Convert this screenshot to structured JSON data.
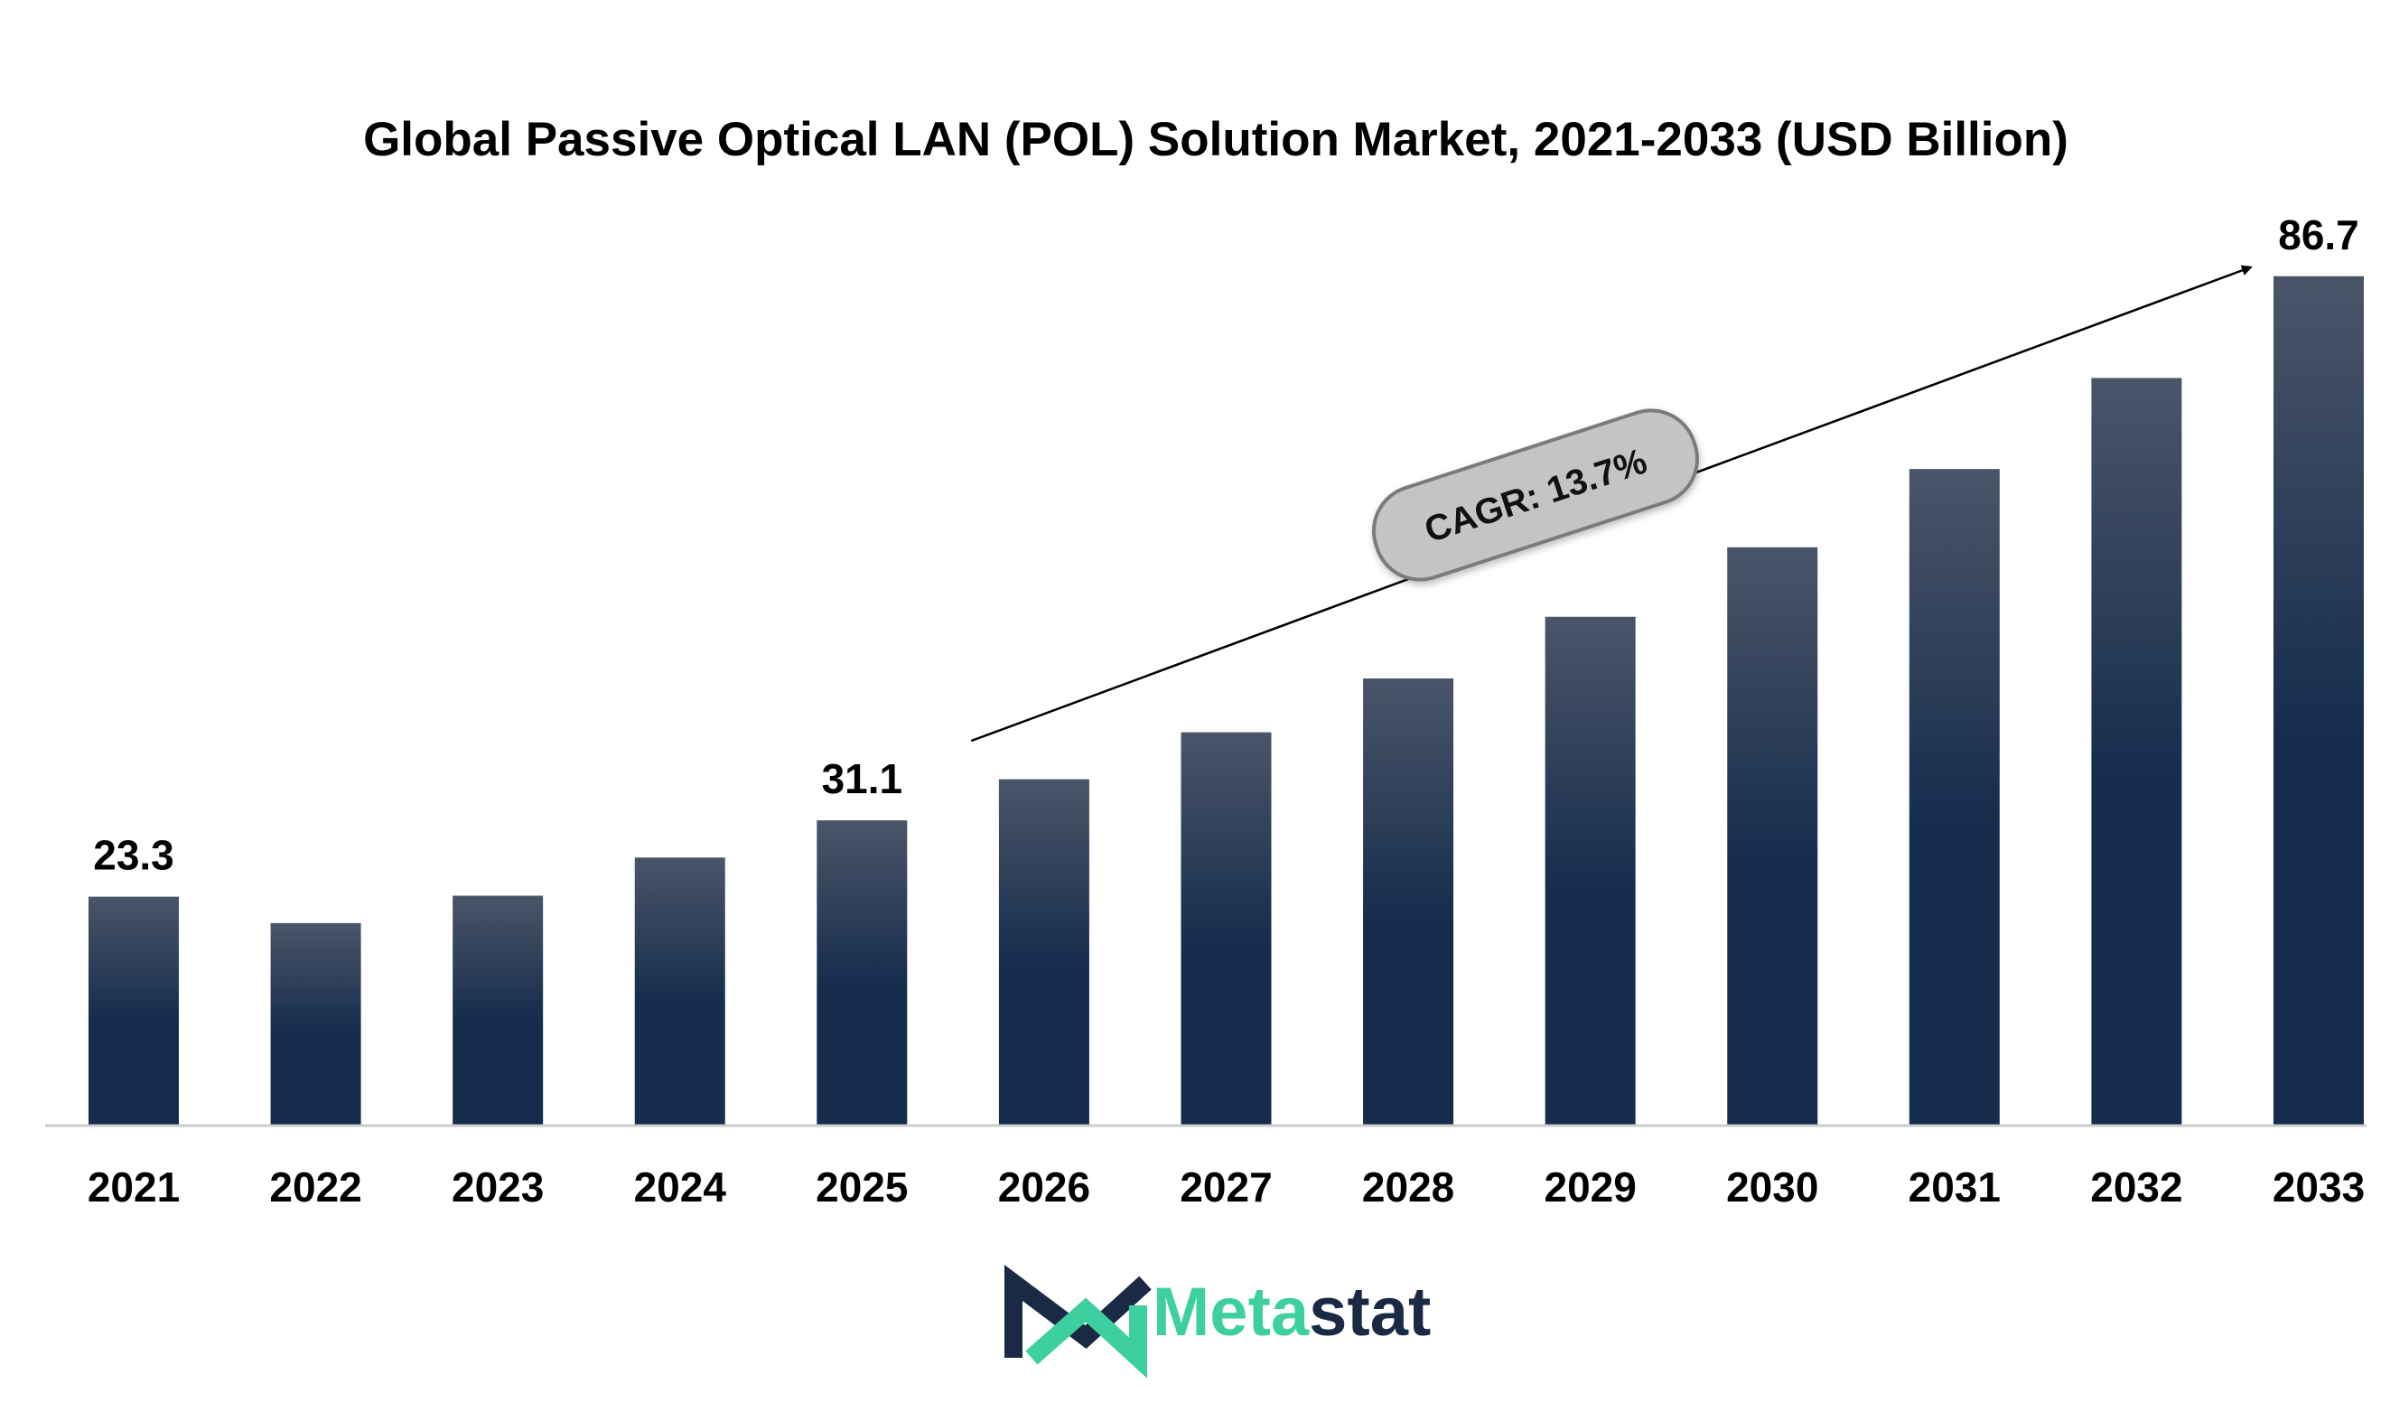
{
  "chart_data": {
    "type": "bar",
    "title": "Global Passive Optical LAN (POL) Solution Market, 2021-2033 (USD Billion)",
    "categories": [
      "2021",
      "2022",
      "2023",
      "2024",
      "2025",
      "2026",
      "2027",
      "2028",
      "2029",
      "2030",
      "2031",
      "2032",
      "2033"
    ],
    "values": [
      23.3,
      20.6,
      23.4,
      27.3,
      31.1,
      35.3,
      40.1,
      45.6,
      51.9,
      59.0,
      67.0,
      76.3,
      86.7
    ],
    "data_labels": {
      "2021": "23.3",
      "2025": "31.1",
      "2033": "86.7"
    },
    "ylim": [
      0,
      90
    ],
    "grid": false,
    "annotation": {
      "text": "CAGR: 13.7%",
      "arrow_from": "2025",
      "arrow_to": "2033"
    },
    "colors": {
      "bar_top": "#4a5568",
      "bar_bottom": "#152c4d",
      "axis": "#cccccc",
      "cagr_fill": "#c4c4c4",
      "cagr_stroke": "#7a7a7a"
    }
  },
  "brand": {
    "name_part1": "Meta",
    "name_part2": "stat",
    "color_primary": "#3dcf9f",
    "color_dark": "#1b2a44",
    "logo_icon": "metastat-m-logo-icon"
  }
}
